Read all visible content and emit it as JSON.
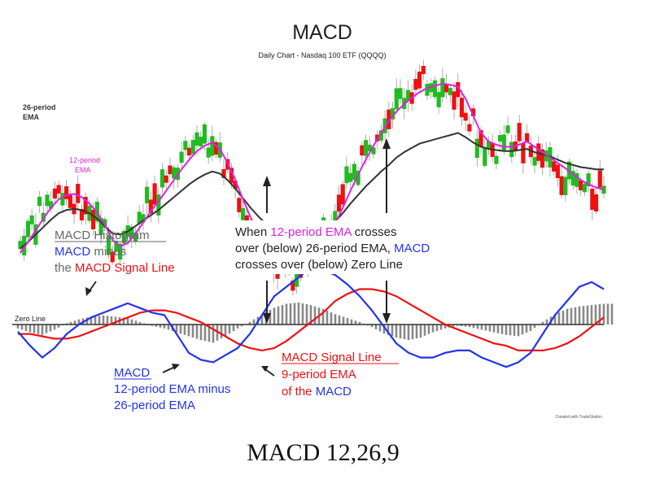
{
  "chart_data": {
    "type": "line",
    "title": "MACD",
    "subtitle": "Daily Chart - Nasdaq 100 ETF (QQQQ)",
    "caption": "MACD 12,26,9",
    "credit": "Created with TradeStation",
    "zero_line_label": "Zero Line",
    "series_labels": {
      "ema26": [
        "26-period",
        "EMA"
      ],
      "ema12": [
        "12-period",
        "EMA"
      ]
    },
    "annotations": {
      "histogram": {
        "title": "MACD Histogram",
        "line2_a": "MACD",
        "line2_b": " minus",
        "line3_a": "the ",
        "line3_b": "MACD Signal Line"
      },
      "crossover": {
        "l1_a": "When ",
        "l1_b": "12-period EMA",
        "l1_c": " crosses",
        "l2_a": "over (below) 26-period EMA, ",
        "l2_b": "MACD",
        "l3": "crosses over (below) Zero Line"
      },
      "macd": {
        "title": "MACD",
        "line2": "12-period EMA minus",
        "line3": "26-period EMA"
      },
      "signal": {
        "title": "MACD Signal Line",
        "line2": "9-period EMA",
        "line3_a": "of the ",
        "line3_b": "MACD"
      }
    },
    "price": {
      "ema26": [
        150,
        156,
        163,
        170,
        177,
        183,
        186,
        187,
        186,
        183,
        178,
        171,
        164,
        163,
        166,
        171,
        176,
        181,
        186,
        192,
        198,
        204,
        210,
        215,
        219,
        222,
        220,
        214,
        206,
        197,
        188,
        180,
        173,
        166,
        161,
        158,
        156,
        155,
        157,
        162,
        168,
        175,
        183,
        192,
        200,
        208,
        215,
        222,
        228,
        235,
        240,
        244,
        248,
        250,
        252,
        254,
        256,
        258,
        254
      ],
      "ema12": [
        146,
        156,
        167,
        178,
        188,
        196,
        200,
        201,
        198,
        192,
        184,
        172,
        158,
        152,
        155,
        164,
        174,
        185,
        194,
        204,
        214,
        224,
        233,
        241,
        246,
        249,
        243,
        230,
        214,
        196,
        179,
        165,
        153,
        144,
        138,
        135,
        132,
        131,
        136,
        146,
        159,
        173,
        188,
        204,
        219,
        233,
        246,
        258,
        269,
        278,
        285,
        291,
        296,
        300,
        302,
        304,
        303,
        301,
        290
      ],
      "ema12_tail": [
        290,
        274,
        258,
        250,
        247,
        245,
        245,
        247,
        250,
        245,
        240,
        235,
        230,
        225,
        219,
        214,
        210,
        207,
        205
      ],
      "ema26_tail": [
        254,
        249,
        245,
        243,
        242,
        241,
        241,
        242,
        243,
        240,
        238,
        236,
        233,
        230,
        228,
        226,
        225,
        224,
        224
      ]
    },
    "indicator": {
      "zero": 0,
      "macd": [
        -3,
        -9,
        -14,
        -10,
        -4,
        0,
        3,
        5,
        7,
        9,
        7,
        5,
        4,
        -4,
        -12,
        -15,
        -16,
        -13,
        -10,
        -4,
        4,
        12,
        16,
        20,
        24,
        23,
        21,
        17,
        12,
        6,
        -1,
        -8,
        -12,
        -14,
        -14,
        -12,
        -11,
        -11,
        -14,
        -16,
        -18,
        -16,
        -12,
        -4,
        4,
        10,
        16,
        18,
        15
      ],
      "signal": [
        -4,
        -4,
        -5,
        -6,
        -6,
        -5,
        -3,
        -1,
        1,
        3,
        5,
        6,
        6,
        5,
        3,
        1,
        -2,
        -5,
        -8,
        -10,
        -11,
        -10,
        -7,
        -3,
        1,
        5,
        10,
        13,
        15,
        15,
        14,
        12,
        9,
        6,
        3,
        0,
        -2,
        -4,
        -6,
        -8,
        -9,
        -11,
        -11,
        -11,
        -10,
        -8,
        -5,
        -1,
        3
      ],
      "histogram": [
        -3,
        -6,
        -8,
        -4,
        1,
        4,
        6,
        7,
        6,
        5,
        2,
        -1,
        -3,
        -6,
        -9,
        -12,
        -14,
        -9,
        -3,
        2,
        8,
        13,
        16,
        17,
        15,
        12,
        8,
        5,
        2,
        -2,
        -7,
        -10,
        -12,
        -10,
        -6,
        -3,
        -1,
        -2,
        -4,
        -6,
        -8,
        -9,
        -5,
        2,
        8,
        12,
        14,
        15,
        16
      ]
    },
    "colors": {
      "bullish": "#22bb22",
      "bearish": "#ee1111",
      "ema26": "#333333",
      "ema12": "#dd22dd",
      "macd": "#2233ee",
      "signal": "#ee1111",
      "histogram": "#888888",
      "zero": "#333333",
      "annotation_red": "#ee1111",
      "annotation_blue": "#2233ee",
      "annotation_magenta": "#dd22dd"
    }
  }
}
